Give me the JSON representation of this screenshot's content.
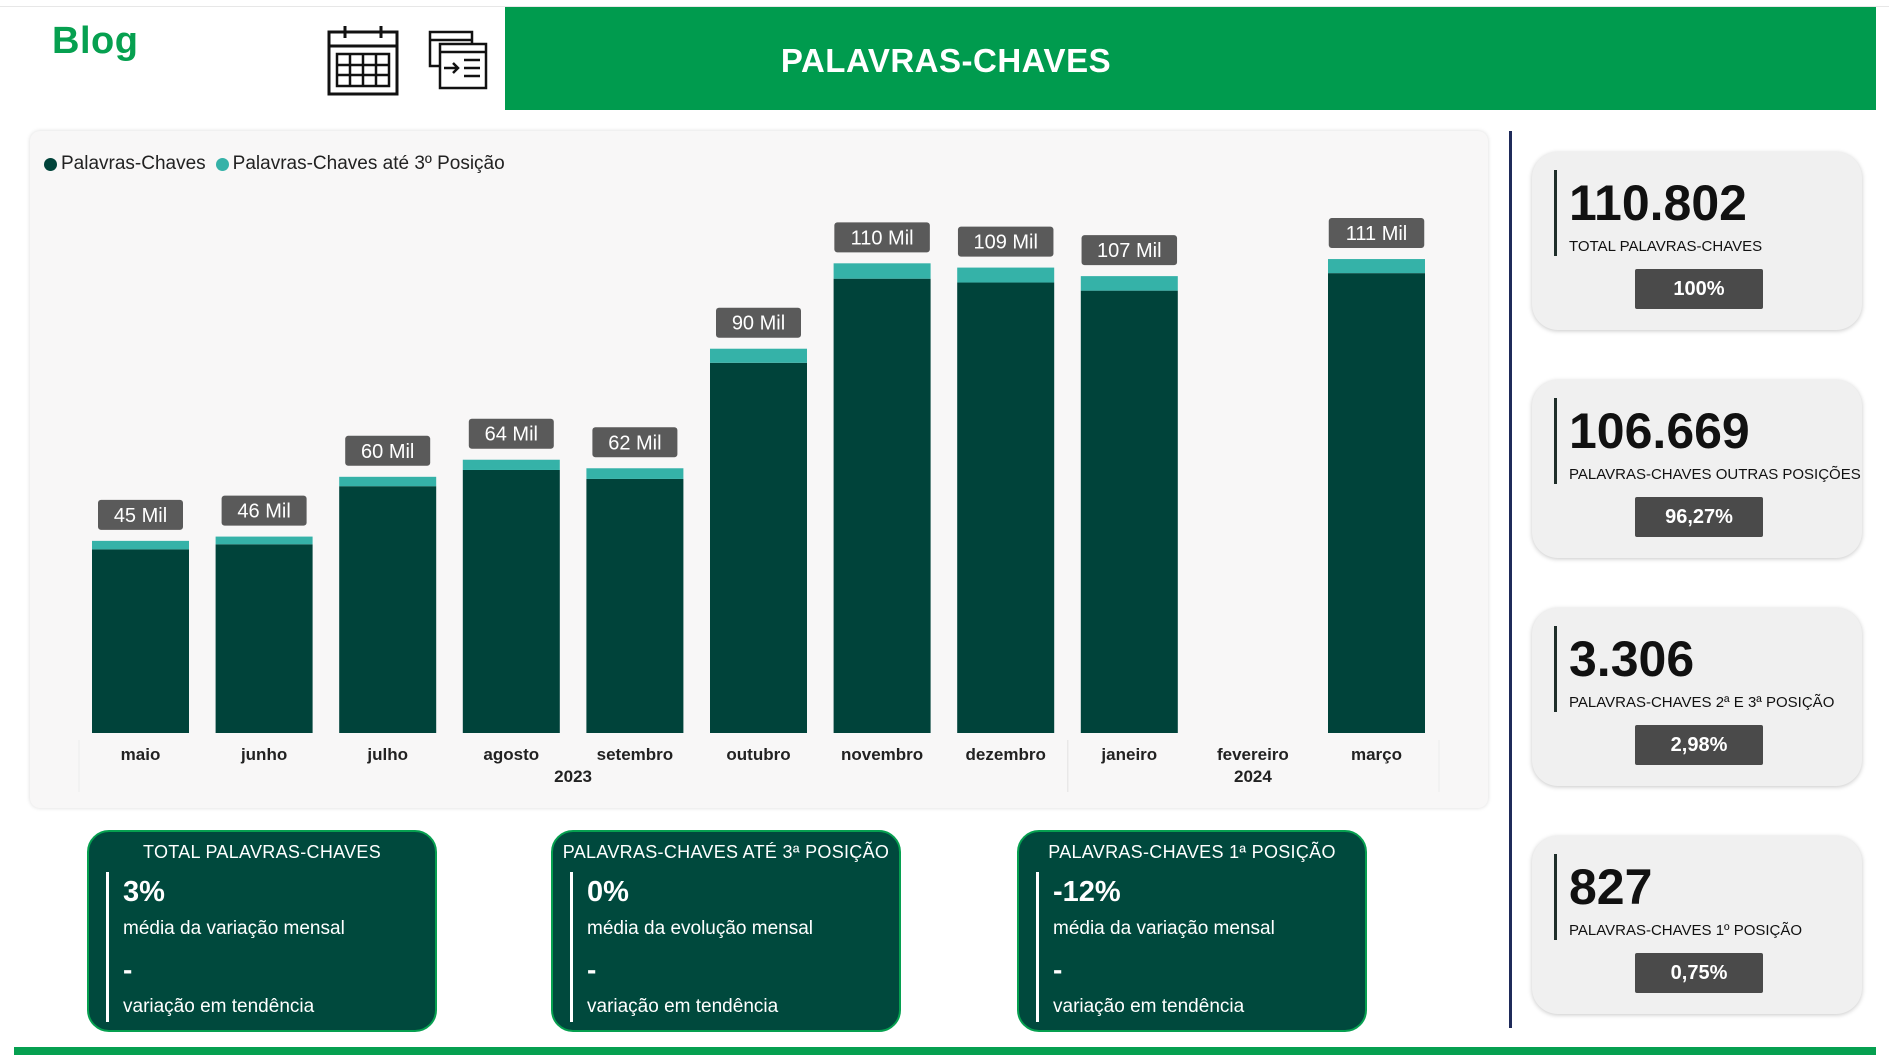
{
  "header": {
    "logo_text": "Blog",
    "title": "PALAVRAS-CHAVES",
    "icons": [
      "calendar-icon",
      "report-export-icon"
    ]
  },
  "colors": {
    "brand_green": "#009b4e",
    "bar_main": "#00433a",
    "bar_top3": "#35b2a8",
    "label_bg": "#5a5a5a"
  },
  "chart_data": {
    "type": "bar",
    "stacked": true,
    "categories": [
      "maio",
      "junho",
      "julho",
      "agosto",
      "setembro",
      "outubro",
      "novembro",
      "dezembro",
      "janeiro",
      "fevereiro",
      "março"
    ],
    "year_groups": [
      {
        "label": "2023",
        "categories": [
          "maio",
          "junho",
          "julho",
          "agosto",
          "setembro",
          "outubro",
          "novembro",
          "dezembro"
        ]
      },
      {
        "label": "2024",
        "categories": [
          "janeiro",
          "fevereiro",
          "março"
        ]
      }
    ],
    "series": [
      {
        "name": "Palavras-Chaves",
        "color": "#00433a",
        "values": [
          43000,
          44200,
          57800,
          61600,
          59500,
          86700,
          106400,
          105500,
          103600,
          null,
          107700
        ]
      },
      {
        "name": "Palavras-Chaves até 3º Posição",
        "color": "#35b2a8",
        "values": [
          2000,
          1800,
          2200,
          2400,
          2500,
          3300,
          3600,
          3500,
          3400,
          null,
          3300
        ]
      }
    ],
    "data_labels": [
      "45 Mil",
      "46 Mil",
      "60 Mil",
      "64 Mil",
      "62 Mil",
      "90 Mil",
      "110 Mil",
      "109 Mil",
      "107 Mil",
      "",
      "111 Mil"
    ],
    "ylim": [
      0,
      126000
    ],
    "legend_position": "top-left",
    "grid": false
  },
  "kpis": [
    {
      "value": "110.802",
      "label": "TOTAL PALAVRAS-CHAVES",
      "percent": "100%"
    },
    {
      "value": "106.669",
      "label": "PALAVRAS-CHAVES OUTRAS POSIÇÕES",
      "percent": "96,27%"
    },
    {
      "value": "3.306",
      "label": "PALAVRAS-CHAVES 2ª E 3ª POSIÇÃO",
      "percent": "2,98%"
    },
    {
      "value": "827",
      "label": "PALAVRAS-CHAVES 1º POSIÇÃO",
      "percent": "0,75%"
    }
  ],
  "stats": [
    {
      "title": "TOTAL PALAVRAS-CHAVES",
      "value": "3%",
      "caption": "média da variação mensal",
      "trend": "-",
      "trend_caption": "variação em tendência"
    },
    {
      "title": "PALAVRAS-CHAVES ATÉ 3ª POSIÇÃO",
      "value": "0%",
      "caption": "média da evolução mensal",
      "trend": "-",
      "trend_caption": "variação em tendência"
    },
    {
      "title": "PALAVRAS-CHAVES 1ª POSIÇÃO",
      "value": "-12%",
      "caption": "média da variação mensal",
      "trend": "-",
      "trend_caption": "variação em tendência"
    }
  ]
}
